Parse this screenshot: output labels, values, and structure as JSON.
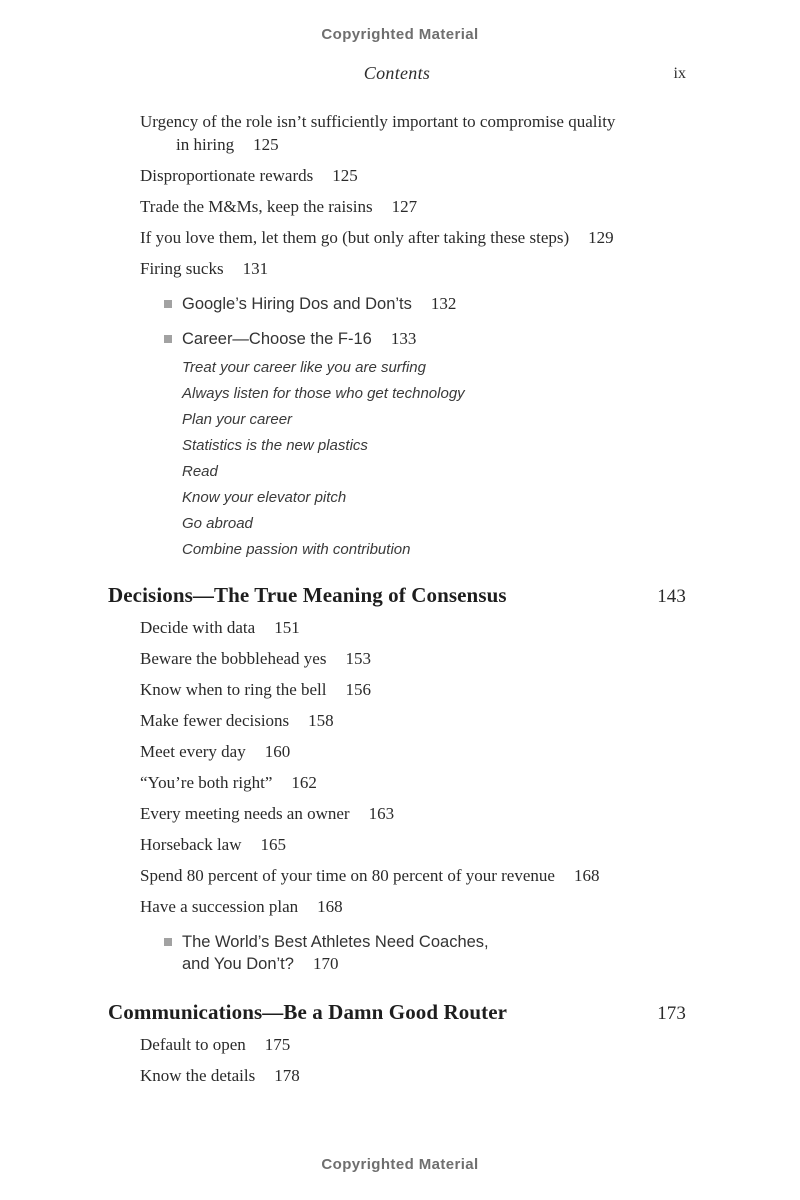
{
  "page": {
    "top_notice": "Copyrighted Material",
    "bottom_notice": "Copyrighted Material",
    "running_header": {
      "title": "Contents",
      "page_number": "ix"
    },
    "colors": {
      "text": "#2a2a2a",
      "heading": "#1e1e1e",
      "notice": "#6f6f6f",
      "bullet": "#a2a2a2"
    }
  },
  "toc": {
    "rows": [
      {
        "type": "entry",
        "lines": [
          "Urgency of the role isn’t sufficiently important to compromise quality",
          "in hiring"
        ],
        "page": "125"
      },
      {
        "type": "entry",
        "lines": [
          "Disproportionate rewards"
        ],
        "page": "125"
      },
      {
        "type": "entry",
        "lines": [
          "Trade the M&Ms, keep the raisins"
        ],
        "page": "127"
      },
      {
        "type": "entry",
        "lines": [
          "If you love them, let them go (but only after taking these steps)"
        ],
        "page": "129"
      },
      {
        "type": "entry",
        "lines": [
          "Firing sucks"
        ],
        "page": "131"
      },
      {
        "type": "bullet",
        "lines": [
          "Google’s Hiring Dos and Don’ts"
        ],
        "page": "132"
      },
      {
        "type": "bullet",
        "lines": [
          "Career—Choose the F-16"
        ],
        "page": "133"
      },
      {
        "type": "sub",
        "lines": [
          "Treat your career like you are surfing"
        ],
        "page": ""
      },
      {
        "type": "sub",
        "lines": [
          "Always listen for those who get technology"
        ],
        "page": ""
      },
      {
        "type": "sub",
        "lines": [
          "Plan your career"
        ],
        "page": ""
      },
      {
        "type": "sub",
        "lines": [
          "Statistics is the new plastics"
        ],
        "page": ""
      },
      {
        "type": "sub",
        "lines": [
          "Read"
        ],
        "page": ""
      },
      {
        "type": "sub",
        "lines": [
          "Know your elevator pitch"
        ],
        "page": ""
      },
      {
        "type": "sub",
        "lines": [
          "Go abroad"
        ],
        "page": ""
      },
      {
        "type": "sub",
        "lines": [
          "Combine passion with contribution"
        ],
        "page": ""
      },
      {
        "type": "chapter",
        "lines": [
          "Decisions—The True Meaning of Consensus"
        ],
        "page": "143"
      },
      {
        "type": "entry",
        "lines": [
          "Decide with data"
        ],
        "page": "151"
      },
      {
        "type": "entry",
        "lines": [
          "Beware the bobblehead yes"
        ],
        "page": "153"
      },
      {
        "type": "entry",
        "lines": [
          "Know when to ring the bell"
        ],
        "page": "156"
      },
      {
        "type": "entry",
        "lines": [
          "Make fewer decisions"
        ],
        "page": "158"
      },
      {
        "type": "entry",
        "lines": [
          "Meet every day"
        ],
        "page": "160"
      },
      {
        "type": "entry",
        "lines": [
          "“You’re both right”"
        ],
        "page": "162"
      },
      {
        "type": "entry",
        "lines": [
          "Every meeting needs an owner"
        ],
        "page": "163"
      },
      {
        "type": "entry",
        "lines": [
          "Horseback law"
        ],
        "page": "165"
      },
      {
        "type": "entry",
        "lines": [
          "Spend 80 percent of your time on 80 percent of your revenue"
        ],
        "page": "168"
      },
      {
        "type": "entry",
        "lines": [
          "Have a succession plan"
        ],
        "page": "168"
      },
      {
        "type": "bullet",
        "lines": [
          "The World’s Best Athletes Need Coaches,",
          "and You Don’t?"
        ],
        "page": "170"
      },
      {
        "type": "chapter",
        "lines": [
          "Communications—Be a Damn Good Router"
        ],
        "page": "173"
      },
      {
        "type": "entry",
        "lines": [
          "Default to open"
        ],
        "page": "175"
      },
      {
        "type": "entry",
        "lines": [
          "Know the details"
        ],
        "page": "178"
      }
    ]
  }
}
